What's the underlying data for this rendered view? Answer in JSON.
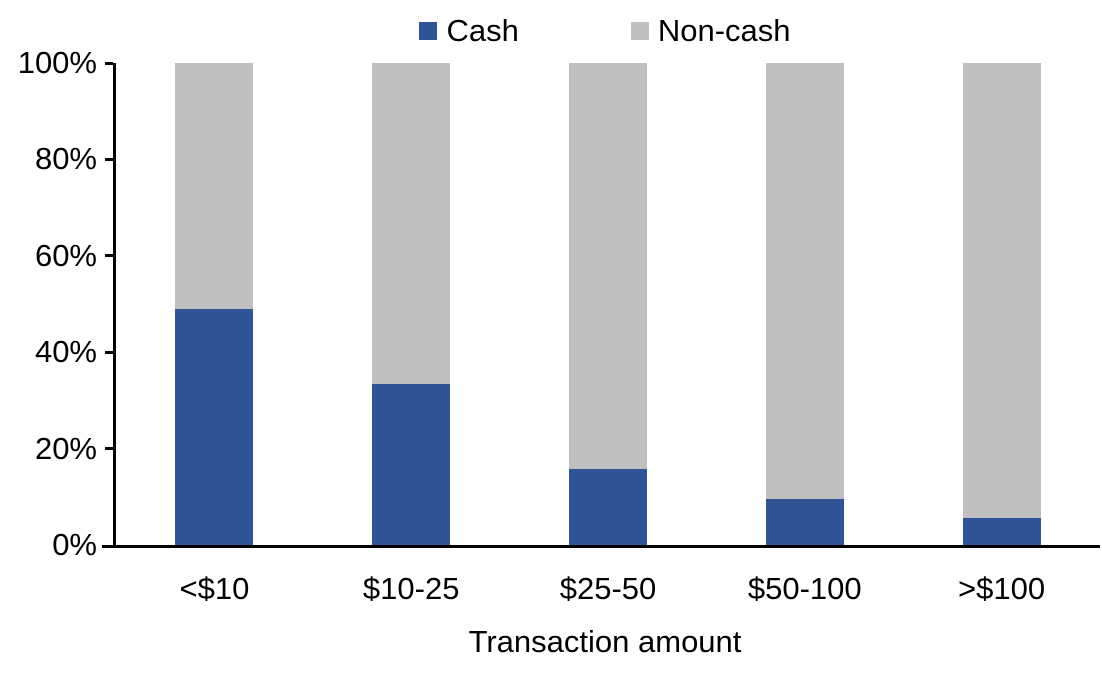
{
  "chart_data": {
    "type": "bar",
    "stacked": true,
    "percent_stacked": true,
    "title": "",
    "xlabel": "Transaction amount",
    "ylabel": "",
    "categories": [
      "<$10",
      "$10-25",
      "$25-50",
      "$50-100",
      ">$100"
    ],
    "series": [
      {
        "name": "Cash",
        "color": "#2F5597",
        "values": [
          49,
          33.5,
          15.7,
          9.6,
          5.6
        ]
      },
      {
        "name": "Non-cash",
        "color": "#BFBFBF",
        "values": [
          51,
          66.5,
          84.3,
          90.4,
          94.4
        ]
      }
    ],
    "ylim": [
      0,
      100
    ],
    "y_ticks": [
      "0%",
      "20%",
      "40%",
      "60%",
      "80%",
      "100%"
    ],
    "y_tick_values": [
      0,
      20,
      40,
      60,
      80,
      100
    ],
    "legend_position": "top-center",
    "grid": false,
    "axis_color": "#000000",
    "background_color": "#FFFFFF"
  }
}
